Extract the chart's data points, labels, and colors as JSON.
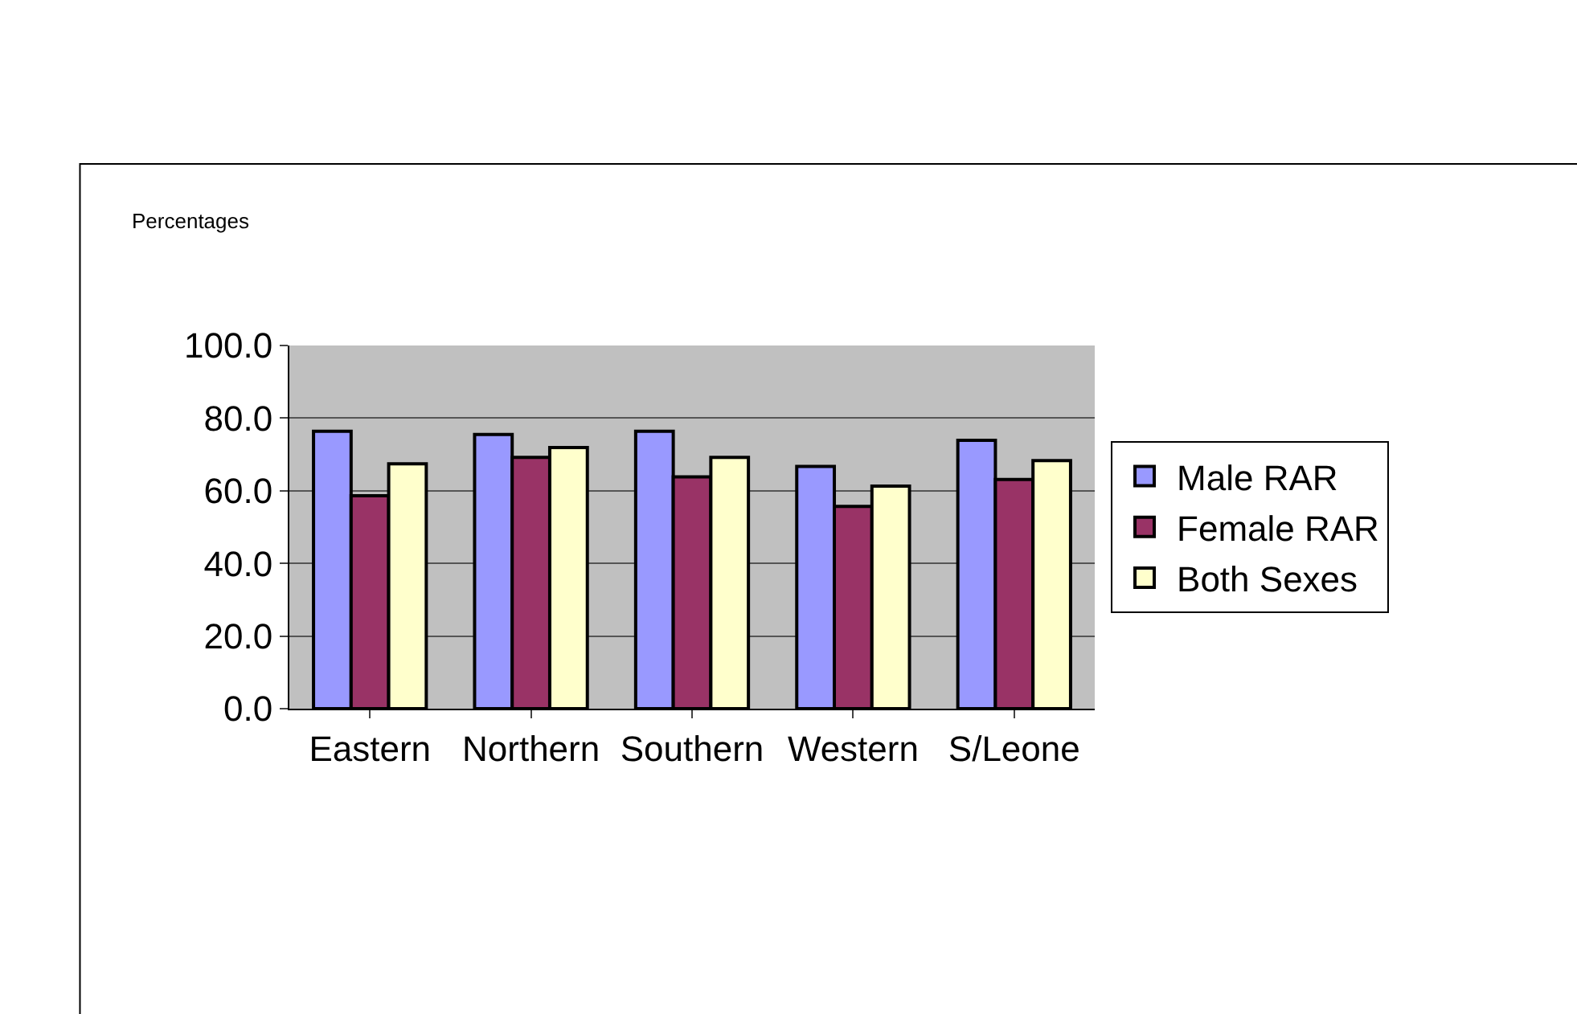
{
  "chart_data": {
    "type": "bar",
    "ylabel": "Percentages",
    "categories": [
      "Eastern",
      "Northern",
      "Southern",
      "Western",
      "S/Leone"
    ],
    "series": [
      {
        "name": "Male RAR",
        "color": "#9999ff",
        "values": [
          76.4,
          75.5,
          76.4,
          66.7,
          73.9
        ]
      },
      {
        "name": "Female RAR",
        "color": "#993366",
        "values": [
          58.6,
          69.2,
          63.8,
          55.7,
          63.1
        ]
      },
      {
        "name": "Both Sexes",
        "color": "#ffffcc",
        "values": [
          67.4,
          71.9,
          69.2,
          61.3,
          68.3
        ]
      }
    ],
    "ylim": [
      0,
      100
    ],
    "yticks": [
      {
        "value": 0,
        "label": "0.0"
      },
      {
        "value": 20,
        "label": "20.0"
      },
      {
        "value": 40,
        "label": "40.0"
      },
      {
        "value": 60,
        "label": "60.0"
      },
      {
        "value": 80,
        "label": "80.0"
      },
      {
        "value": 100,
        "label": "100.0"
      }
    ],
    "grid": "y",
    "legend": "right"
  }
}
